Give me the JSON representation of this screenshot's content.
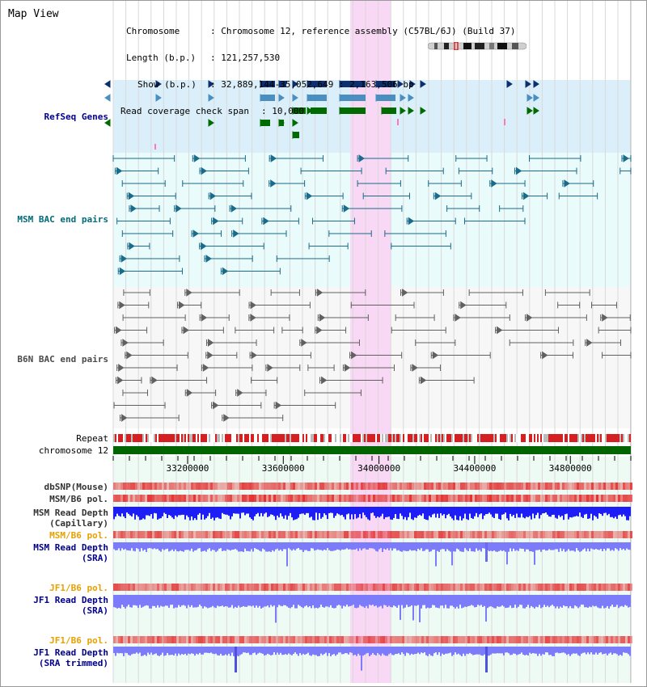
{
  "page": {
    "title": "Map View",
    "info": {
      "chromosome_key": "Chromosome",
      "chromosome_val": ": Chromosome 12, reference assembly (C57BL/6J) (Build 37)",
      "length_key": "Length (b.p.)",
      "length_val": ": 121,257,530",
      "show_key": "Show (b.p.)",
      "show_val": ": 32,889,144-35,052,649 : 2,163,506 bp",
      "coverage_key": "Read coverage check span",
      "coverage_val": ": 10,000"
    }
  },
  "tracks": {
    "refseq": {
      "label": "RefSeq Genes",
      "color": "#00008b",
      "bg": "#dbeffa"
    },
    "msm_bac": {
      "label": "MSM BAC end pairs",
      "color": "#006b7a",
      "bg": "#e9fbfb"
    },
    "b6n_bac": {
      "label": "B6N BAC end pairs",
      "color": "#4a4a4a",
      "bg": "#f7f7f7"
    },
    "repeat": {
      "label": "Repeat"
    },
    "chromosome": {
      "label": "chromosome 12",
      "color": "#006400"
    },
    "dbsnp": {
      "label": "dbSNP(Mouse)"
    },
    "msm_b6_pol_1": {
      "label": "MSM/B6 pol."
    },
    "msm_depth_cap": {
      "label": "MSM Read Depth\n(Capillary)"
    },
    "msm_b6_pol_2": {
      "label": "MSM/B6 pol."
    },
    "msm_depth_sra": {
      "label": "MSM Read Depth\n(SRA)"
    },
    "jf1_b6_pol_1": {
      "label": "JF1/B6 pol."
    },
    "jf1_depth_sra": {
      "label": "JF1 Read Depth\n(SRA)"
    },
    "jf1_b6_pol_2": {
      "label": "JF1/B6 pol."
    },
    "jf1_depth_trim": {
      "label": "JF1 Read Depth\n(SRA trimmed)"
    }
  },
  "axis": {
    "ticks": [
      "33200000",
      "33600000",
      "34000000",
      "34400000",
      "34800000"
    ],
    "range_bp": [
      32889144,
      35052649
    ]
  },
  "highlight": {
    "start_bp": 33880000,
    "end_bp": 34050000,
    "color": "#f8d8f4"
  },
  "colors": {
    "dark_gene": "#0d2f6e",
    "mid_gene": "#4a8fc0",
    "green_gene": "#006b00",
    "msm_pair": "#1a6a8a",
    "b6n_pair": "#606060",
    "depth_cap": "#1d1df5",
    "depth_sra": "#7c7cfa",
    "pol_red": "#e23030"
  }
}
